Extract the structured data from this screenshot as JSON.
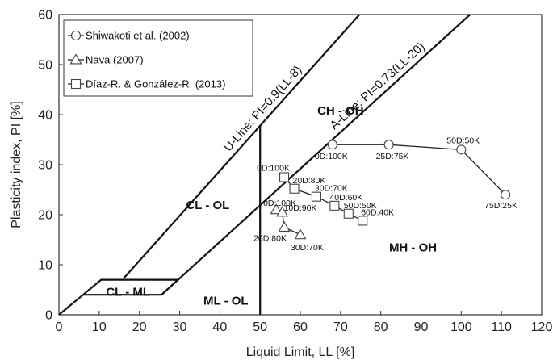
{
  "chart_data": {
    "type": "scatter",
    "xlabel": "Liquid Limit, LL [%]",
    "ylabel": "Plasticity index, PI [%]",
    "xlim": [
      0,
      120
    ],
    "ylim": [
      0,
      60
    ],
    "xticks": [
      0,
      10,
      20,
      30,
      40,
      50,
      60,
      70,
      80,
      90,
      100,
      110,
      120
    ],
    "yticks": [
      0,
      10,
      20,
      30,
      40,
      50,
      60
    ],
    "grid": false,
    "legend_position": "top-left",
    "series": [
      {
        "name": "Shiwakoti et al. (2002)",
        "marker": "circle",
        "points": [
          {
            "x": 68,
            "y": 34,
            "label": "0D:100K"
          },
          {
            "x": 82,
            "y": 34,
            "label": "25D:75K"
          },
          {
            "x": 100,
            "y": 33,
            "label": "50D:50K"
          },
          {
            "x": 111,
            "y": 24,
            "label": "75D:25K"
          }
        ]
      },
      {
        "name": "Nava (2007)",
        "marker": "triangle",
        "points": [
          {
            "x": 54,
            "y": 21,
            "label": "0D:100K"
          },
          {
            "x": 55.5,
            "y": 20.5,
            "label": "10D:90K"
          },
          {
            "x": 56,
            "y": 17.5,
            "label": "20D:80K"
          },
          {
            "x": 60,
            "y": 16,
            "label": "30D:70K"
          }
        ]
      },
      {
        "name": "Díaz-R. & González-R. (2013)",
        "marker": "square",
        "points": [
          {
            "x": 56,
            "y": 27.5,
            "label": "0D:100K"
          },
          {
            "x": 58.5,
            "y": 25.2,
            "label": "20D:80K"
          },
          {
            "x": 64,
            "y": 23.6,
            "label": "30D:70K"
          },
          {
            "x": 68.5,
            "y": 21.8,
            "label": "40D:60K"
          },
          {
            "x": 72,
            "y": 20.2,
            "label": "50D:50K"
          },
          {
            "x": 75.5,
            "y": 18.8,
            "label": "60D:40K"
          }
        ]
      }
    ],
    "reference_lines": {
      "u_line": {
        "label": "U-Line: PI=0.9(LL-8)",
        "points": [
          [
            16,
            7.2
          ],
          [
            74.7,
            60
          ]
        ]
      },
      "a_line": {
        "label": "A-Line: PI=0.73(LL-20)",
        "points": [
          [
            25.5,
            4
          ],
          [
            102.2,
            60
          ]
        ]
      },
      "ll50_line": {
        "points": [
          [
            50,
            0
          ],
          [
            50,
            37.8
          ]
        ]
      },
      "origin_line": {
        "points": [
          [
            0,
            0
          ],
          [
            6,
            4
          ]
        ]
      },
      "cl_ml_box": {
        "points": [
          [
            6,
            4
          ],
          [
            25.5,
            4
          ],
          [
            29.6,
            7
          ],
          [
            10.5,
            7
          ],
          [
            6,
            4
          ]
        ]
      }
    },
    "zones": [
      {
        "label": "CH - OH",
        "x": 70,
        "y": 40.8
      },
      {
        "label": "CL - OL",
        "x": 37,
        "y": 21.9
      },
      {
        "label": "CL - ML",
        "x": 17.2,
        "y": 4.6
      },
      {
        "label": "ML - OL",
        "x": 41.5,
        "y": 2.8
      },
      {
        "label": "MH - OH",
        "x": 88,
        "y": 13.5
      }
    ]
  }
}
